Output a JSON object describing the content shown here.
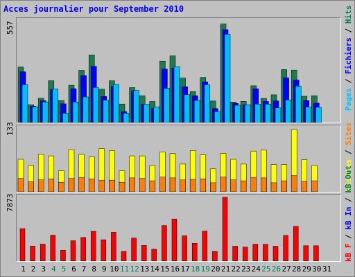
{
  "title": "Acces journalier pour September 2010",
  "colors": {
    "pages": "#1e7a4f",
    "fichiers": "#0000ff",
    "hits": "#00bfff",
    "visites": "#ffff00",
    "sites": "#ff8000",
    "kbf": "#ff0000",
    "weekend_label": "#00805a",
    "weekday_label": "#000000"
  },
  "chart_data": [
    {
      "type": "bar",
      "name": "hits-panel",
      "ymax_label": "557",
      "ylim": [
        0,
        557
      ],
      "legend": [
        {
          "key": "pages",
          "label": "Pages",
          "color": "#00bfff"
        },
        {
          "key": "sep1",
          "label": " / ",
          "color": "#000000"
        },
        {
          "key": "fichiers",
          "label": "Fichiers",
          "color": "#0000ff"
        },
        {
          "key": "sep2",
          "label": " / ",
          "color": "#000000"
        },
        {
          "key": "hits",
          "label": "Hits",
          "color": "#00805a"
        }
      ],
      "series": [
        {
          "name": "Hits",
          "color": "#1e7a4f",
          "values": [
            308,
            99,
            135,
            232,
            122,
            207,
            290,
            375,
            185,
            232,
            103,
            194,
            149,
            117,
            341,
            370,
            247,
            172,
            251,
            120,
            547,
            114,
            118,
            204,
            134,
            154,
            294,
            291,
            146,
            149,
            0
          ]
        },
        {
          "name": "Fichiers",
          "color": "#0000ff",
          "values": [
            282,
            91,
            121,
            184,
            104,
            188,
            261,
            312,
            145,
            200,
            61,
            174,
            101,
            80,
            297,
            302,
            199,
            149,
            226,
            78,
            515,
            106,
            98,
            188,
            117,
            120,
            248,
            236,
            122,
            108,
            0
          ]
        },
        {
          "name": "Pages",
          "color": "#00bfff",
          "values": [
            210,
            88,
            115,
            187,
            52,
            114,
            142,
            195,
            124,
            212,
            52,
            178,
            101,
            87,
            190,
            310,
            155,
            123,
            210,
            61,
            490,
            96,
            99,
            102,
            102,
            82,
            126,
            202,
            86,
            85,
            0
          ]
        }
      ]
    },
    {
      "type": "bar",
      "name": "visits-panel",
      "ymax_label": "133",
      "ylim": [
        0,
        133
      ],
      "legend": [
        {
          "key": "visites",
          "label": "Visites",
          "color": "#ffff00"
        },
        {
          "key": "sep1",
          "label": " / ",
          "color": "#000000"
        },
        {
          "key": "sites",
          "label": "Sites",
          "color": "#ff8000"
        }
      ],
      "series": [
        {
          "name": "Visites",
          "color": "#ffff00",
          "values": [
            68,
            55,
            78,
            75,
            44,
            88,
            78,
            73,
            90,
            86,
            44,
            75,
            75,
            55,
            83,
            80,
            58,
            86,
            77,
            48,
            80,
            68,
            58,
            85,
            87,
            57,
            57,
            130,
            67,
            55,
            0
          ]
        },
        {
          "name": "Sites",
          "color": "#ff8000",
          "values": [
            28,
            21,
            25,
            27,
            20,
            28,
            30,
            27,
            24,
            24,
            20,
            29,
            28,
            23,
            31,
            29,
            25,
            26,
            27,
            19,
            31,
            25,
            23,
            30,
            29,
            19,
            23,
            34,
            22,
            23,
            0
          ]
        }
      ]
    },
    {
      "type": "bar",
      "name": "kb-panel",
      "ymax_label": "7873",
      "ylim": [
        0,
        7873
      ],
      "legend": [
        {
          "key": "kbf",
          "label": "kB F",
          "color": "#ff0000"
        },
        {
          "key": "sep1",
          "label": " / ",
          "color": "#000000"
        },
        {
          "key": "kbin",
          "label": "kB In",
          "color": "#0000ff"
        },
        {
          "key": "sep2",
          "label": " / ",
          "color": "#000000"
        },
        {
          "key": "kbout",
          "label": "kB Out",
          "color": "#00805a"
        }
      ],
      "series": [
        {
          "name": "kB F",
          "color": "#ff0000",
          "values": [
            4010,
            1850,
            2100,
            3200,
            1340,
            2520,
            2930,
            3670,
            2640,
            3560,
            1200,
            2840,
            1930,
            1460,
            4400,
            5200,
            3120,
            2200,
            3700,
            1200,
            7870,
            1840,
            1730,
            2080,
            2070,
            1840,
            3170,
            4300,
            1900,
            1900,
            0
          ]
        }
      ]
    }
  ],
  "days": [
    {
      "label": "1",
      "weekend": false
    },
    {
      "label": "2",
      "weekend": false
    },
    {
      "label": "3",
      "weekend": false
    },
    {
      "label": "4",
      "weekend": true
    },
    {
      "label": "5",
      "weekend": true
    },
    {
      "label": "6",
      "weekend": false
    },
    {
      "label": "7",
      "weekend": false
    },
    {
      "label": "8",
      "weekend": false
    },
    {
      "label": "9",
      "weekend": false
    },
    {
      "label": "10",
      "weekend": false
    },
    {
      "label": "11",
      "weekend": true
    },
    {
      "label": "12",
      "weekend": true
    },
    {
      "label": "13",
      "weekend": false
    },
    {
      "label": "14",
      "weekend": false
    },
    {
      "label": "15",
      "weekend": false
    },
    {
      "label": "16",
      "weekend": false
    },
    {
      "label": "17",
      "weekend": false
    },
    {
      "label": "18",
      "weekend": true
    },
    {
      "label": "19",
      "weekend": true
    },
    {
      "label": "20",
      "weekend": false
    },
    {
      "label": "21",
      "weekend": false
    },
    {
      "label": "22",
      "weekend": false
    },
    {
      "label": "23",
      "weekend": false
    },
    {
      "label": "24",
      "weekend": false
    },
    {
      "label": "25",
      "weekend": true
    },
    {
      "label": "26",
      "weekend": true
    },
    {
      "label": "27",
      "weekend": false
    },
    {
      "label": "28",
      "weekend": false
    },
    {
      "label": "29",
      "weekend": false
    },
    {
      "label": "30",
      "weekend": false
    },
    {
      "label": "31",
      "weekend": false
    }
  ]
}
